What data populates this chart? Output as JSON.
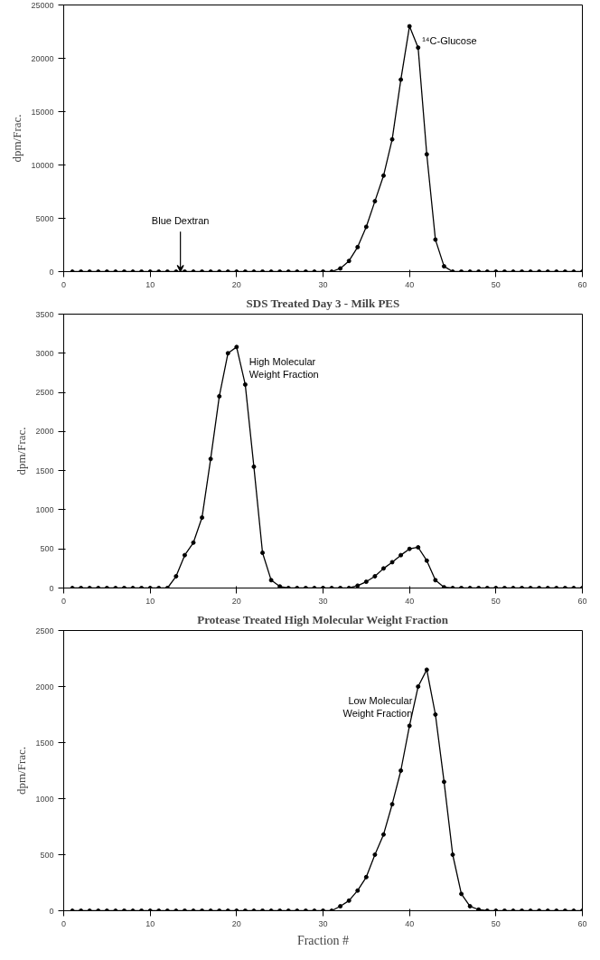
{
  "chart_data": [
    {
      "type": "line",
      "ylabel": "dpm/Frac.",
      "x": [
        1,
        2,
        3,
        4,
        5,
        6,
        7,
        8,
        9,
        10,
        11,
        12,
        13,
        14,
        15,
        16,
        17,
        18,
        19,
        20,
        21,
        22,
        23,
        24,
        25,
        26,
        27,
        28,
        29,
        30,
        31,
        32,
        33,
        34,
        35,
        36,
        37,
        38,
        39,
        40,
        41,
        42,
        43,
        44,
        45,
        46,
        47,
        48,
        49,
        50,
        51,
        52,
        53,
        54,
        55,
        56,
        57,
        58,
        59,
        60
      ],
      "series": [
        {
          "color": "#000000",
          "values": [
            0,
            0,
            0,
            0,
            0,
            0,
            0,
            0,
            0,
            0,
            0,
            0,
            0,
            0,
            0,
            0,
            0,
            0,
            0,
            0,
            0,
            0,
            0,
            0,
            0,
            0,
            0,
            0,
            0,
            0,
            0,
            300,
            1000,
            2300,
            4200,
            6600,
            9000,
            12400,
            18000,
            23000,
            21000,
            11000,
            3000,
            500,
            0,
            0,
            0,
            0,
            0,
            0,
            0,
            0,
            0,
            0,
            0,
            0,
            0,
            0,
            0,
            0
          ]
        }
      ],
      "annotations": [
        {
          "text": "Blue Dextran",
          "x": 13.5,
          "y": 0
        },
        {
          "text": "¹⁴C-Glucose",
          "x": 40,
          "y": 23000
        }
      ],
      "xlim": [
        0,
        60
      ],
      "xticks": [
        0,
        10,
        20,
        30,
        40,
        50,
        60
      ],
      "ylim": [
        0,
        25000
      ],
      "yticks": [
        0,
        5000,
        10000,
        15000,
        20000,
        25000
      ],
      "grid": false,
      "marker": "circle",
      "line_style": "solid"
    },
    {
      "type": "line",
      "title": "SDS Treated Day 3 - Milk PES",
      "ylabel": "dpm/Frac.",
      "x": [
        1,
        2,
        3,
        4,
        5,
        6,
        7,
        8,
        9,
        10,
        11,
        12,
        13,
        14,
        15,
        16,
        17,
        18,
        19,
        20,
        21,
        22,
        23,
        24,
        25,
        26,
        27,
        28,
        29,
        30,
        31,
        32,
        33,
        34,
        35,
        36,
        37,
        38,
        39,
        40,
        41,
        42,
        43,
        44,
        45,
        46,
        47,
        48,
        49,
        50,
        51,
        52,
        53,
        54,
        55,
        56,
        57,
        58,
        59,
        60
      ],
      "series": [
        {
          "color": "#000000",
          "values": [
            0,
            0,
            0,
            0,
            0,
            0,
            0,
            0,
            0,
            0,
            0,
            0,
            150,
            420,
            580,
            900,
            1650,
            2450,
            3000,
            3080,
            2600,
            1550,
            450,
            100,
            20,
            0,
            0,
            0,
            0,
            0,
            0,
            0,
            0,
            30,
            80,
            150,
            250,
            330,
            420,
            500,
            520,
            350,
            100,
            10,
            0,
            0,
            0,
            0,
            0,
            0,
            0,
            0,
            0,
            0,
            0,
            0,
            0,
            0,
            0,
            0
          ]
        }
      ],
      "annotations": [
        {
          "text": "High Molecular\nWeight Fraction",
          "x": 20,
          "y": 3080
        }
      ],
      "xlim": [
        0,
        60
      ],
      "xticks": [
        0,
        10,
        20,
        30,
        40,
        50,
        60
      ],
      "ylim": [
        0,
        3500
      ],
      "yticks": [
        0,
        500,
        1000,
        1500,
        2000,
        2500,
        3000,
        3500
      ],
      "grid": false,
      "marker": "circle",
      "line_style": "solid"
    },
    {
      "type": "line",
      "title": "Protease Treated High Molecular Weight Fraction",
      "xlabel": "Fraction #",
      "ylabel": "dpm/Frac.",
      "x": [
        1,
        2,
        3,
        4,
        5,
        6,
        7,
        8,
        9,
        10,
        11,
        12,
        13,
        14,
        15,
        16,
        17,
        18,
        19,
        20,
        21,
        22,
        23,
        24,
        25,
        26,
        27,
        28,
        29,
        30,
        31,
        32,
        33,
        34,
        35,
        36,
        37,
        38,
        39,
        40,
        41,
        42,
        43,
        44,
        45,
        46,
        47,
        48,
        49,
        50,
        51,
        52,
        53,
        54,
        55,
        56,
        57,
        58,
        59,
        60
      ],
      "series": [
        {
          "color": "#000000",
          "values": [
            0,
            0,
            0,
            0,
            0,
            0,
            0,
            0,
            0,
            0,
            0,
            0,
            0,
            0,
            0,
            0,
            0,
            0,
            0,
            0,
            0,
            0,
            0,
            0,
            0,
            0,
            0,
            0,
            0,
            0,
            0,
            40,
            90,
            180,
            300,
            500,
            680,
            950,
            1250,
            1650,
            2000,
            2150,
            1750,
            1150,
            500,
            150,
            40,
            10,
            0,
            0,
            0,
            0,
            0,
            0,
            0,
            0,
            0,
            0,
            0,
            0
          ]
        }
      ],
      "annotations": [
        {
          "text": "Low Molecular\nWeight Fraction",
          "x": 42,
          "y": 2150
        }
      ],
      "xlim": [
        0,
        60
      ],
      "xticks": [
        0,
        10,
        20,
        30,
        40,
        50,
        60
      ],
      "ylim": [
        0,
        2500
      ],
      "yticks": [
        0,
        500,
        1000,
        1500,
        2000,
        2500
      ],
      "grid": false,
      "marker": "circle",
      "line_style": "solid"
    }
  ]
}
